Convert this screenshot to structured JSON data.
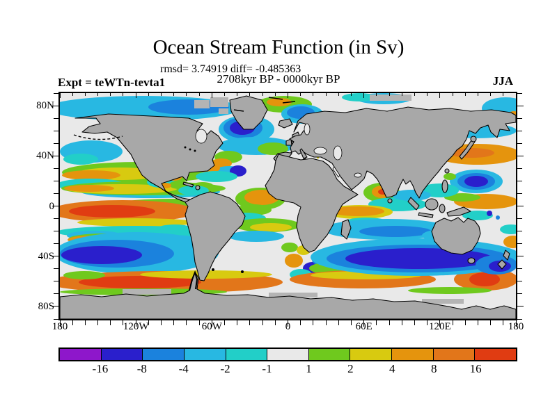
{
  "header": {
    "title": "Ocean Stream Function (in Sv)",
    "stats_line": "rmsd= 3.74919 diff= -0.485363",
    "period_line": "2708kyr BP - 0000kyr BP",
    "experiment_label": "Expt = teWTn-tevta1",
    "season_label": "JJA"
  },
  "axes": {
    "y_labels": [
      "80N",
      "40N",
      "0",
      "40S",
      "80S"
    ],
    "x_labels": [
      "180",
      "120W",
      "60W",
      "0",
      "60E",
      "120E",
      "180"
    ]
  },
  "colorbar": {
    "tick_labels": [
      "-16",
      "-8",
      "-4",
      "-2",
      "-1",
      "1",
      "2",
      "4",
      "8",
      "16"
    ],
    "segment_colors": [
      "#8E17CB",
      "#2A1FCC",
      "#1B82DD",
      "#28B8E2",
      "#22CFC8",
      "#E9E9E9",
      "#6FC91E",
      "#D8CA10",
      "#E5940D",
      "#E2761A",
      "#E03C12"
    ]
  },
  "chart_data": {
    "type": "heatmap",
    "subtype": "filled-contour-world-map",
    "title": "Ocean Stream Function (in Sv)",
    "units": "Sv",
    "stats": {
      "rmsd": 3.74919,
      "diff": -0.485363
    },
    "field": "2708kyr BP - 0000kyr BP",
    "experiment": "teWTn-tevta1",
    "season": "JJA",
    "x_axis": {
      "label": "longitude",
      "tick_labels": [
        "180",
        "120W",
        "60W",
        "0",
        "60E",
        "120E",
        "180"
      ],
      "range_deg": [
        -180,
        180
      ],
      "minor_tick_interval_deg": 10
    },
    "y_axis": {
      "label": "latitude",
      "tick_labels": [
        "80N",
        "40N",
        "0",
        "40S",
        "80S"
      ],
      "range_deg": [
        -90,
        90
      ],
      "minor_tick_interval_deg": 10
    },
    "contour_levels": [
      -16,
      -8,
      -4,
      -2,
      -1,
      1,
      2,
      4,
      8,
      16
    ],
    "palette": [
      "#8E17CB",
      "#2A1FCC",
      "#1B82DD",
      "#28B8E2",
      "#22CFC8",
      "#E9E9E9",
      "#6FC91E",
      "#D8CA10",
      "#E5940D",
      "#E2761A",
      "#E03C12"
    ],
    "land_color": "#A8A8A8",
    "ocean_background_color": "#E9E9E9",
    "legend_position": "bottom",
    "notable_features": [
      "Strong positive (orange/red, 8-16 Sv) zonal band across the Southern Ocean near 50-60S",
      "Strong negative (dark blue, -16 to -8 Sv) anomaly in the southeast Pacific near 40S",
      "Strong negative (dark blue) zonal band south of Australia extending toward New Zealand near 45S",
      "Positive (orange) band in the equatorial Pacific just south of the equator with red core in the west",
      "Positive (orange) Kuroshio-extension anomaly east of Japan near 35-40N",
      "Negative (blue/cyan) anomaly southeast of Greenland; green-orange patch near Iceland",
      "Green/yellow/orange band in the northeast Pacific near 45N",
      "Cyan band with blue core in the Bering Sea / subarctic North Pacific",
      "Mixed small-scale positive and negative eddies near the Antarctic Peninsula and South Georgia",
      "Orange patch off Somalia and orange band in the south Indian Ocean near 15S"
    ]
  }
}
